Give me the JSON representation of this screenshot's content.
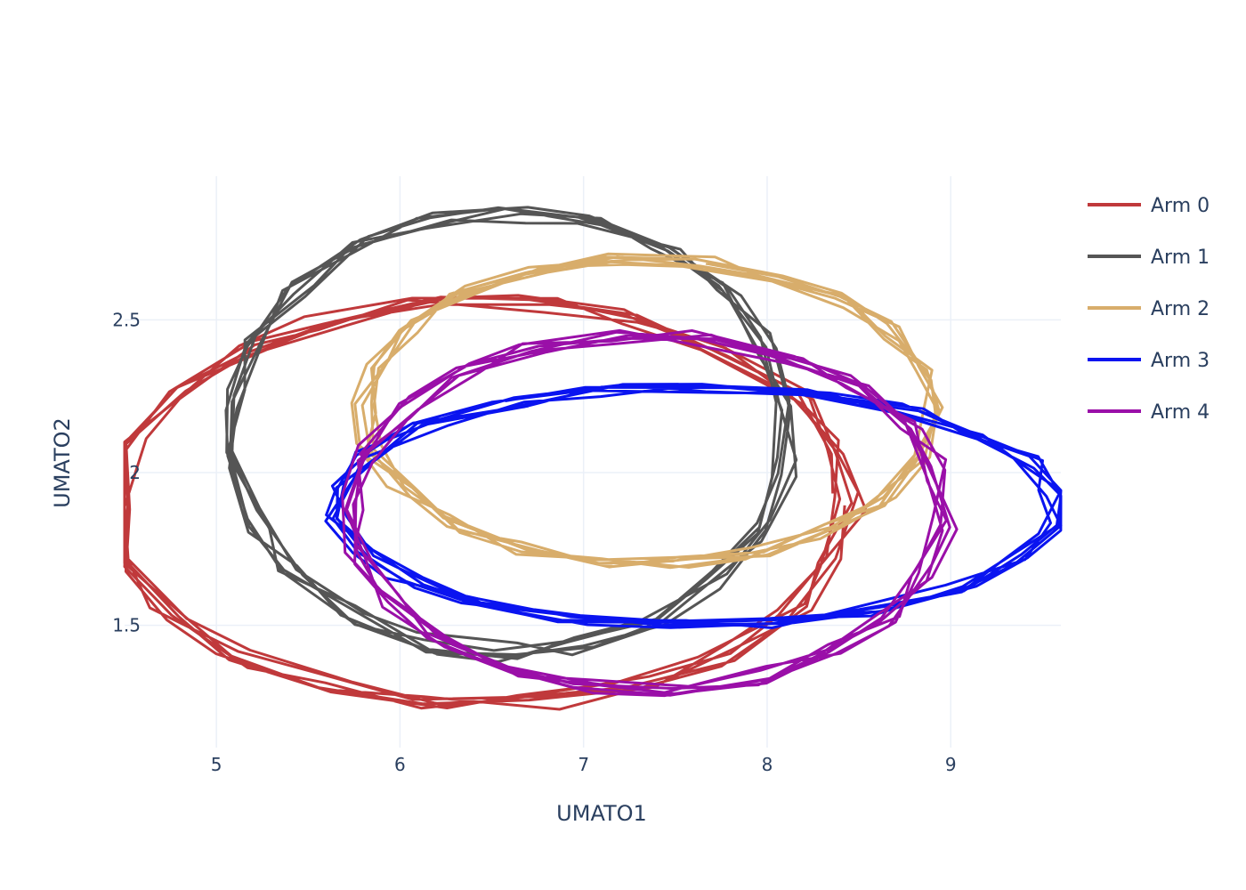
{
  "chart_data": {
    "type": "line",
    "xlabel": "UMATO1",
    "ylabel": "UMATO2",
    "xlim": [
      4.5,
      9.6
    ],
    "ylim": [
      1.1,
      2.97
    ],
    "xticks": [
      5,
      6,
      7,
      8,
      9
    ],
    "xtick_labels": [
      "5",
      "6",
      "7",
      "8",
      "9"
    ],
    "yticks": [
      1.5,
      2,
      2.5
    ],
    "ytick_labels": [
      "1.5",
      "2",
      "2.5"
    ],
    "grid": true,
    "legend_position": "top-right",
    "series": [
      {
        "name": "Arm 0",
        "color": "#c0393b",
        "center": [
          6.45,
          1.9
        ],
        "radius": [
          2.0,
          0.66
        ],
        "loops": 6,
        "points": 22,
        "points_sample": [
          [
            4.45,
            1.92
          ],
          [
            5.1,
            2.33
          ],
          [
            6.6,
            2.55
          ],
          [
            8.0,
            2.2
          ],
          [
            8.1,
            1.7
          ],
          [
            6.8,
            1.2
          ],
          [
            5.2,
            1.36
          ]
        ]
      },
      {
        "name": "Arm 1",
        "color": "#555555",
        "center": [
          6.6,
          2.13
        ],
        "radius": [
          1.52,
          0.72
        ],
        "loops": 6,
        "points": 22,
        "points_sample": [
          [
            5.1,
            2.0
          ],
          [
            6.0,
            2.7
          ],
          [
            7.3,
            2.86
          ],
          [
            8.15,
            2.6
          ],
          [
            7.8,
            1.75
          ],
          [
            6.4,
            1.37
          ],
          [
            5.4,
            1.6
          ]
        ]
      },
      {
        "name": "Arm 2",
        "color": "#d8ad6b",
        "center": [
          7.35,
          2.2
        ],
        "radius": [
          1.55,
          0.5
        ],
        "loops": 6,
        "points": 22,
        "points_sample": [
          [
            5.8,
            2.25
          ],
          [
            6.2,
            2.6
          ],
          [
            7.5,
            2.7
          ],
          [
            8.85,
            2.3
          ],
          [
            8.6,
            1.85
          ],
          [
            7.5,
            1.7
          ],
          [
            6.2,
            1.8
          ]
        ]
      },
      {
        "name": "Arm 3",
        "color": "#0a14f0",
        "center": [
          7.6,
          1.89
        ],
        "radius": [
          1.98,
          0.39
        ],
        "loops": 6,
        "points": 22,
        "points_sample": [
          [
            5.6,
            2.0
          ],
          [
            6.5,
            2.25
          ],
          [
            7.5,
            2.28
          ],
          [
            9.5,
            1.9
          ],
          [
            8.8,
            1.55
          ],
          [
            7.7,
            1.5
          ],
          [
            6.4,
            1.7
          ]
        ]
      },
      {
        "name": "Arm 4",
        "color": "#9a0fa8",
        "center": [
          7.35,
          1.87
        ],
        "radius": [
          1.62,
          0.58
        ],
        "loops": 6,
        "points": 22,
        "points_sample": [
          [
            5.73,
            1.95
          ],
          [
            6.5,
            2.36
          ],
          [
            7.6,
            2.45
          ],
          [
            8.95,
            1.9
          ],
          [
            8.2,
            1.3
          ],
          [
            7.0,
            1.3
          ],
          [
            6.0,
            1.5
          ]
        ]
      }
    ]
  }
}
